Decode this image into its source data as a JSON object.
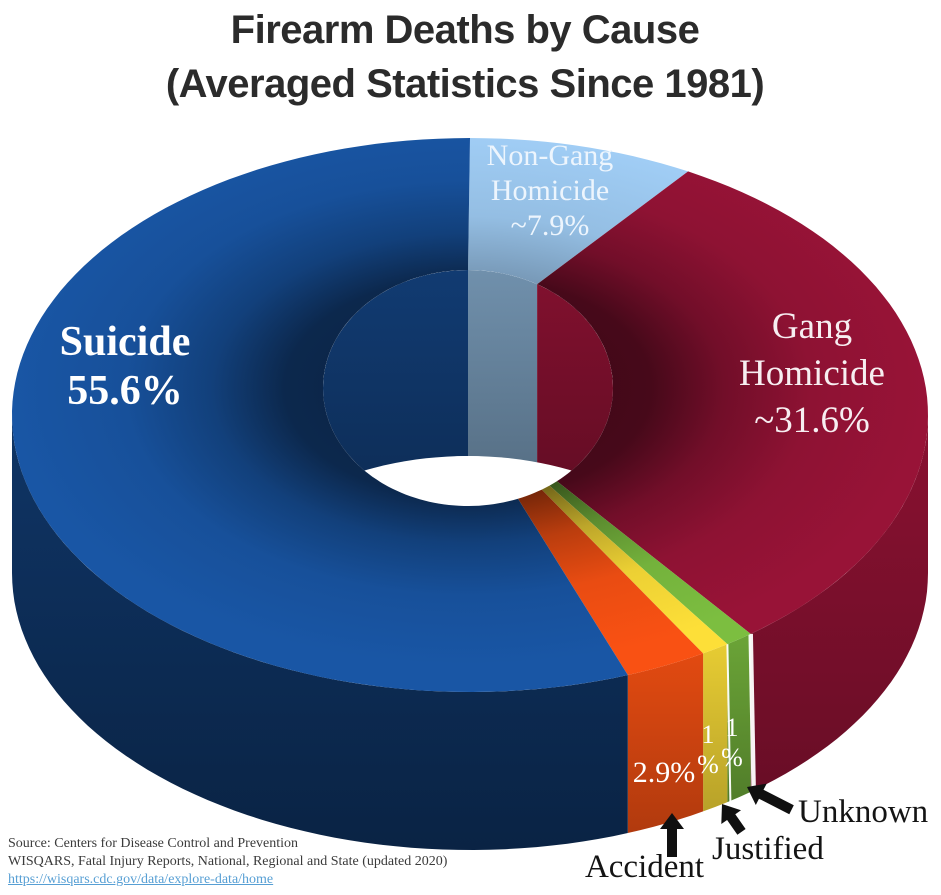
{
  "title": {
    "line1": "Firearm Deaths by Cause",
    "line2": "(Averaged Statistics Since 1981)"
  },
  "chart_data": {
    "type": "pie",
    "subtype": "3d-donut",
    "title": "Firearm Deaths by Cause",
    "subtitle": "(Averaged Statistics Since 1981)",
    "direction": "clockwise",
    "start_angle_deg": 0,
    "units": "percent",
    "slices": [
      {
        "label": "Non-Gang Homicide",
        "label_lines": [
          "Non-Gang",
          "Homicide"
        ],
        "value": 7.9,
        "display": "~7.9%",
        "color": "#9cc8ef"
      },
      {
        "label": "Gang Homicide",
        "label_lines": [
          "Gang",
          "Homicide"
        ],
        "value": 31.6,
        "display": "~31.6%",
        "color": "#8e1233"
      },
      {
        "label": "Unknown",
        "value": 1.0,
        "display": "1 %",
        "display_lines": [
          "1",
          "%"
        ],
        "color": "#74b23c"
      },
      {
        "label": "Justified",
        "value": 1.0,
        "display": "1 %",
        "display_lines": [
          "1",
          "%"
        ],
        "color": "#ecd034"
      },
      {
        "label": "Accident",
        "value": 2.9,
        "display": "2.9%",
        "color": "#e94c12"
      },
      {
        "label": "Suicide",
        "label_lines": [
          "Suicide"
        ],
        "value": 55.6,
        "display": "55.6%",
        "color": "#17509a"
      }
    ],
    "legend_position": "labels-on-slices",
    "annotations": [
      "Accident",
      "Justified",
      "Unknown"
    ]
  },
  "source": {
    "line1": "Source: Centers for Disease Control and Prevention",
    "line2": "WISQARS, Fatal Injury Reports, National, Regional and State (updated 2020)",
    "link": "https://wisqars.cdc.gov/data/explore-data/home"
  },
  "colors": {
    "background": "#ffffff",
    "title_text": "#2b2b2b",
    "annotation_text": "#141414",
    "source_text": "#3b3b3b",
    "link": "#579fd4",
    "arrow": "#101010"
  }
}
